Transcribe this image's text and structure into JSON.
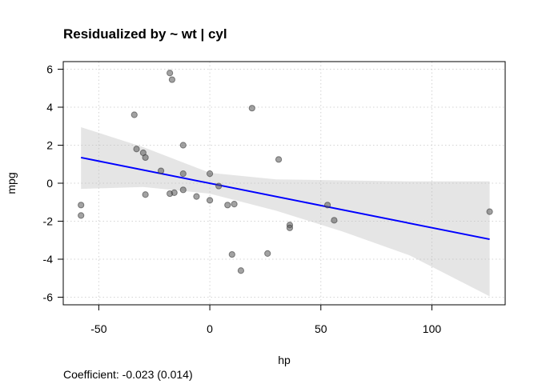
{
  "chart_data": {
    "type": "scatter",
    "title": "Residualized by ~ wt | cyl",
    "xlabel": "hp",
    "ylabel": "mpg",
    "caption": "Coefficient: -0.023 (0.014)",
    "xlim": [
      -66,
      133
    ],
    "ylim": [
      -6.4,
      6.4
    ],
    "x_ticks": [
      -50,
      0,
      50,
      100
    ],
    "x_tick_labels": [
      "-50",
      "0",
      "50",
      "100"
    ],
    "y_ticks": [
      -6,
      -4,
      -2,
      0,
      2,
      4,
      6
    ],
    "y_tick_labels": [
      "-6",
      "-4",
      "-2",
      "0",
      "2",
      "4",
      "6"
    ],
    "grid": true,
    "colors": {
      "points": "#555555",
      "fit_line": "#0000ff",
      "band": "#bebebe"
    },
    "points": [
      {
        "x": -58,
        "y": -1.15
      },
      {
        "x": -58,
        "y": -1.7
      },
      {
        "x": -34,
        "y": 3.6
      },
      {
        "x": -33,
        "y": 1.8
      },
      {
        "x": -30,
        "y": 1.6
      },
      {
        "x": -29,
        "y": 1.35
      },
      {
        "x": -29,
        "y": -0.6
      },
      {
        "x": -22,
        "y": 0.65
      },
      {
        "x": -18,
        "y": 5.8
      },
      {
        "x": -17,
        "y": 5.45
      },
      {
        "x": -18,
        "y": -0.55
      },
      {
        "x": -16,
        "y": -0.5
      },
      {
        "x": -12,
        "y": 2.0
      },
      {
        "x": -12,
        "y": 0.5
      },
      {
        "x": -12,
        "y": -0.35
      },
      {
        "x": -6,
        "y": -0.7
      },
      {
        "x": 0,
        "y": 0.5
      },
      {
        "x": 0,
        "y": -0.9
      },
      {
        "x": 4,
        "y": -0.15
      },
      {
        "x": 8,
        "y": -1.15
      },
      {
        "x": 11,
        "y": -1.1
      },
      {
        "x": 10,
        "y": -3.75
      },
      {
        "x": 14,
        "y": -4.6
      },
      {
        "x": 19,
        "y": 3.95
      },
      {
        "x": 26,
        "y": -3.7
      },
      {
        "x": 31,
        "y": 1.25
      },
      {
        "x": 36,
        "y": -2.2
      },
      {
        "x": 36,
        "y": -2.35
      },
      {
        "x": 53,
        "y": -1.15
      },
      {
        "x": 56,
        "y": -1.95
      },
      {
        "x": 126,
        "y": -1.5
      }
    ],
    "fit": {
      "x": [
        -58,
        126
      ],
      "y": [
        1.35,
        -2.95
      ]
    },
    "confidence_band": {
      "x": [
        -58,
        -30,
        0,
        30,
        60,
        90,
        126
      ],
      "lower": [
        -0.3,
        -0.2,
        -0.55,
        -1.45,
        -2.55,
        -3.8,
        -5.95
      ],
      "upper": [
        2.95,
        1.9,
        0.55,
        0.2,
        0.15,
        0.1,
        0.1
      ]
    }
  }
}
